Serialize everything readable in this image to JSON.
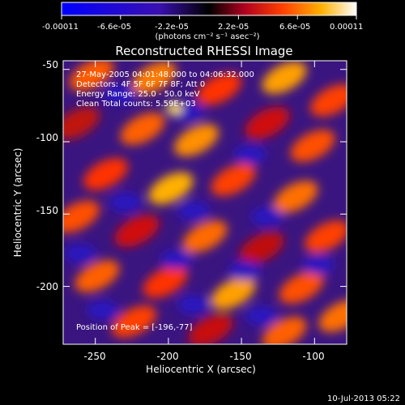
{
  "colorbar": {
    "tick_labels": [
      "-0.00011",
      "-6.6e-05",
      "-2.2e-05",
      "2.2e-05",
      "6.6e-05",
      "0.00011"
    ],
    "unit_label": "(photons cm⁻² s⁻¹ asec⁻²)"
  },
  "annotations": {
    "time_range": "27-May-2005 04:01:48.000 to 04:06:32.000",
    "detectors": "Detectors: 4F 5F 6F 7F 8F; Att 0",
    "energy": "Energy Range: 25.0 - 50.0 keV",
    "clean": "Clean    Total counts: 5.59E+03",
    "peak": "Position of Peak = [-196,-77]"
  },
  "footer": {
    "timestamp": "10-Jul-2013 05:22"
  },
  "chart_data": {
    "type": "heatmap",
    "title": "Reconstructed RHESSI Image",
    "xlabel": "Heliocentric X (arcsec)",
    "ylabel": "Heliocentric Y (arcsec)",
    "xlim": [
      -272,
      -78
    ],
    "ylim": [
      -240,
      -44
    ],
    "x_ticks": [
      -250,
      -200,
      -150,
      -100
    ],
    "y_ticks": [
      -50,
      -100,
      -150,
      -200
    ],
    "colorbar_range": [
      -0.00011,
      0.00011
    ],
    "peak_position": [
      -196,
      -77
    ]
  }
}
